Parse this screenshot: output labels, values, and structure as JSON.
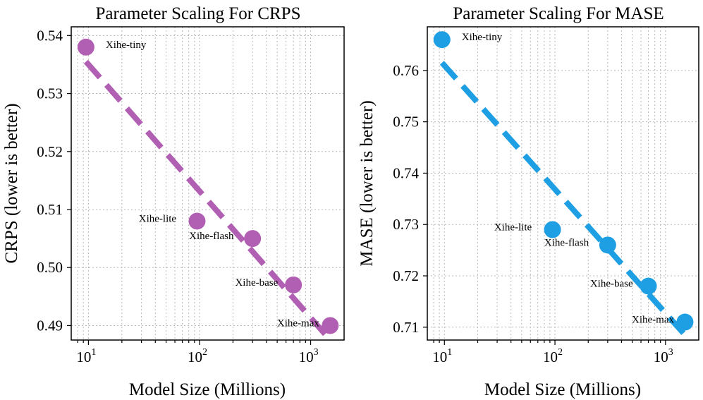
{
  "chart_data": [
    {
      "type": "scatter",
      "title": "Parameter Scaling For CRPS",
      "xlabel": "Model Size (Millions)",
      "ylabel": "CRPS (lower is better)",
      "xscale": "log",
      "xlim": [
        7,
        2000
      ],
      "ylim": [
        0.4875,
        0.5415
      ],
      "xticks": [
        {
          "value": 10,
          "base": "10",
          "exp": "1"
        },
        {
          "value": 100,
          "base": "10",
          "exp": "2"
        },
        {
          "value": 1000,
          "base": "10",
          "exp": "3"
        }
      ],
      "yticks": [
        {
          "value": 0.49,
          "label": "0.49"
        },
        {
          "value": 0.5,
          "label": "0.50"
        },
        {
          "value": 0.51,
          "label": "0.51"
        },
        {
          "value": 0.52,
          "label": "0.52"
        },
        {
          "value": 0.53,
          "label": "0.53"
        },
        {
          "value": 0.54,
          "label": "0.54"
        }
      ],
      "color": "#b15fb3",
      "grid": true,
      "points": [
        {
          "name": "Xihe-tiny",
          "x": 9.5,
          "y": 0.538,
          "label_side": "right"
        },
        {
          "name": "Xihe-lite",
          "x": 95,
          "y": 0.508,
          "label_side": "left"
        },
        {
          "name": "Xihe-flash",
          "x": 300,
          "y": 0.505,
          "label_side": "left"
        },
        {
          "name": "Xihe-base",
          "x": 700,
          "y": 0.497,
          "label_side": "left"
        },
        {
          "name": "Xihe-max",
          "x": 1500,
          "y": 0.49,
          "label_side": "left"
        }
      ],
      "trend": {
        "x0": 9.5,
        "y0": 0.5355,
        "x1": 1500,
        "y1": 0.4875
      }
    },
    {
      "type": "scatter",
      "title": "Parameter Scaling For MASE",
      "xlabel": "Model Size (Millions)",
      "ylabel": "MASE (lower is better)",
      "xscale": "log",
      "xlim": [
        7,
        2000
      ],
      "ylim": [
        0.7075,
        0.7685
      ],
      "xticks": [
        {
          "value": 10,
          "base": "10",
          "exp": "1"
        },
        {
          "value": 100,
          "base": "10",
          "exp": "2"
        },
        {
          "value": 1000,
          "base": "10",
          "exp": "3"
        }
      ],
      "yticks": [
        {
          "value": 0.71,
          "label": "0.71"
        },
        {
          "value": 0.72,
          "label": "0.72"
        },
        {
          "value": 0.73,
          "label": "0.73"
        },
        {
          "value": 0.74,
          "label": "0.74"
        },
        {
          "value": 0.75,
          "label": "0.75"
        },
        {
          "value": 0.76,
          "label": "0.76"
        }
      ],
      "color": "#1e9fe3",
      "grid": true,
      "points": [
        {
          "name": "Xihe-tiny",
          "x": 9.5,
          "y": 0.766,
          "label_side": "right"
        },
        {
          "name": "Xihe-lite",
          "x": 95,
          "y": 0.729,
          "label_side": "left"
        },
        {
          "name": "Xihe-flash",
          "x": 300,
          "y": 0.726,
          "label_side": "left"
        },
        {
          "name": "Xihe-base",
          "x": 700,
          "y": 0.718,
          "label_side": "left"
        },
        {
          "name": "Xihe-max",
          "x": 1500,
          "y": 0.711,
          "label_side": "left"
        }
      ],
      "trend": {
        "x0": 9.5,
        "y0": 0.7615,
        "x1": 1500,
        "y1": 0.7085
      }
    }
  ]
}
